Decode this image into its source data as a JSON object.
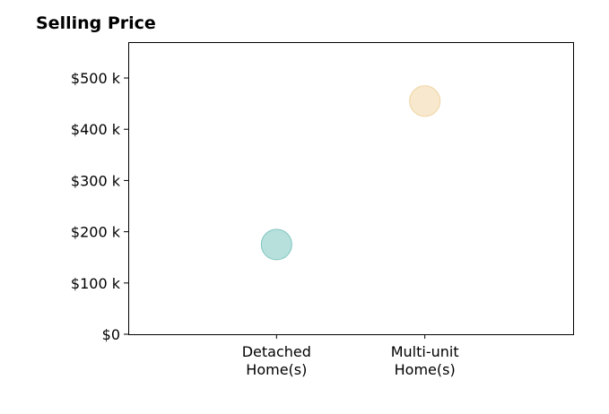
{
  "chart_data": {
    "type": "scatter",
    "title": "Selling Price",
    "xlabel": "",
    "ylabel": "",
    "categories": [
      "Detached\nHome(s)",
      "Multi-unit\nHome(s)"
    ],
    "values": [
      175000,
      455000
    ],
    "point_colors": [
      "#9fd6d0",
      "#f5e2bd"
    ],
    "point_stroke_colors": [
      "#7fc6bf",
      "#eed3a0"
    ],
    "ylim": [
      0,
      570000
    ],
    "yticks": [
      0,
      100000,
      200000,
      300000,
      400000,
      500000
    ],
    "ytick_labels": [
      "$0",
      "$100 k",
      "$200 k",
      "$300 k",
      "$400 k",
      "$500 k"
    ],
    "xlim": [
      -1,
      2
    ],
    "grid": false,
    "legend": "none"
  }
}
